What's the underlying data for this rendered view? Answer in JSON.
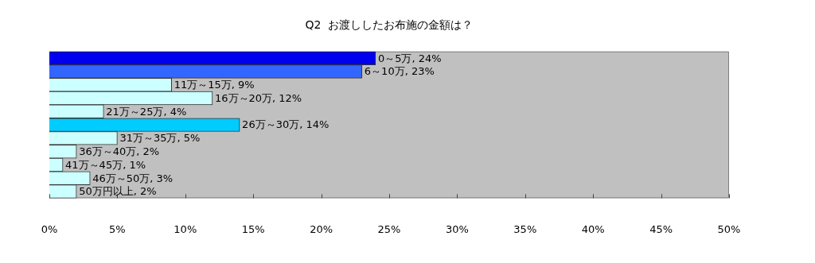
{
  "chart_data": {
    "type": "bar",
    "orientation": "horizontal",
    "title": "Q2  お渡ししたお布施の金額は？",
    "categories": [
      null,
      null,
      null,
      null,
      null,
      null,
      null,
      null,
      null,
      null,
      null
    ],
    "values": [
      24,
      23,
      9,
      12,
      4,
      14,
      5,
      2,
      1,
      3,
      2
    ],
    "colors": [
      "#0000ee",
      "#3366ff",
      "#ccffff",
      "#ccffff",
      "#ccffff",
      "#00ccff",
      "#ccffff",
      "#ccffff",
      "#ccffff",
      "#ccffff",
      "#ccffff"
    ],
    "value_labels": [
      "0～5万, 24%",
      "6～10万, 23%",
      "11万～15万, 9%",
      "16万～20万, 12%",
      "21万～25万, 4%",
      "26万～30万, 14%",
      "31万～35万, 5%",
      "36万～40万, 2%",
      "41万～45万, 1%",
      "46万～50万, 3%",
      "50万円以上, 2%"
    ],
    "xlim": [
      0,
      50
    ],
    "xticks": [
      {
        "value": 0,
        "label": "0%"
      },
      {
        "value": 5,
        "label": "5%"
      },
      {
        "value": 10,
        "label": "10%"
      },
      {
        "value": 15,
        "label": "15%"
      },
      {
        "value": 20,
        "label": "20%"
      },
      {
        "value": 25,
        "label": "25%"
      },
      {
        "value": 30,
        "label": "30%"
      },
      {
        "value": 35,
        "label": "35%"
      },
      {
        "value": 40,
        "label": "40%"
      },
      {
        "value": 45,
        "label": "45%"
      },
      {
        "value": 50,
        "label": "50%"
      }
    ],
    "tick_labels": "x",
    "grid": false,
    "legend": false
  }
}
